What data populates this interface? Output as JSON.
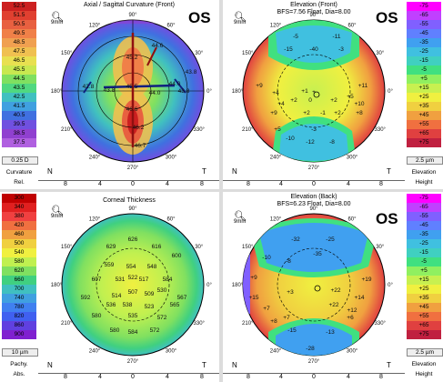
{
  "eye": "OS",
  "panels": {
    "curvature": {
      "title": "Axial / Sagittal Curvature (Front)",
      "scale": [
        "52.5",
        "51.5",
        "50.5",
        "49.5",
        "48.5",
        "47.5",
        "46.5",
        "45.5",
        "44.5",
        "43.5",
        "42.5",
        "41.5",
        "40.5",
        "39.5",
        "38.5",
        "37.5"
      ],
      "scale_colors": [
        "#cc2020",
        "#e04030",
        "#e86040",
        "#f08048",
        "#f0a050",
        "#f0c050",
        "#e8e050",
        "#c8e850",
        "#80e060",
        "#50d880",
        "#40c0c0",
        "#40a0e0",
        "#4070e0",
        "#7050e0",
        "#9040d0",
        "#b060e0"
      ],
      "step": "0.25 D",
      "cap1": "Curvature",
      "cap2": "Rel.",
      "zoom": "9mm",
      "values": [
        "44.6",
        "45.2",
        "43.8",
        "44.0",
        "43.8",
        "42.8",
        "43.8",
        "45.5",
        "44.0",
        "46.6",
        "46.2",
        "46.7"
      ],
      "angles": [
        "90°",
        "60°",
        "30°",
        "0°",
        "330°",
        "300°",
        "270°",
        "240°",
        "210°",
        "180°",
        "150°",
        "120°"
      ],
      "n": "N",
      "t": "T",
      "ruler": [
        "8",
        "4",
        "0",
        "4",
        "8"
      ]
    },
    "elev_front": {
      "title": "Elevation (Front)",
      "subtitle": "BFS=7.56 Float, Dia=8.00",
      "scale": [
        "-75",
        "-65",
        "-55",
        "-45",
        "-35",
        "-25",
        "-15",
        "-5",
        "+5",
        "+15",
        "+25",
        "+35",
        "+45",
        "+55",
        "+65",
        "+75"
      ],
      "scale_colors": [
        "#ff00ff",
        "#c040ff",
        "#8060ff",
        "#6080ff",
        "#40a0f0",
        "#40c0e0",
        "#40d0c0",
        "#40e080",
        "#90f060",
        "#c8f050",
        "#f0f040",
        "#f0d040",
        "#f0a040",
        "#f07040",
        "#e04040",
        "#c02040"
      ],
      "step": "2.5 µm",
      "cap1": "Elevation",
      "cap2": "Height",
      "zoom": "9mm",
      "values": [
        "-5",
        "-11",
        "-15",
        "-40",
        "-3",
        "+9",
        "+4",
        "+11",
        "+1",
        "+5",
        "+2",
        "0",
        "+2",
        "+4",
        "+10",
        "+9",
        "+2",
        "-1",
        "+2",
        "+8",
        "+5",
        "-3",
        "-10",
        "-12",
        "-8"
      ],
      "angles": [
        "90°",
        "60°",
        "30°",
        "0°",
        "330°",
        "300°",
        "270°",
        "240°",
        "210°",
        "180°",
        "150°",
        "120°"
      ],
      "n": "N",
      "t": "T",
      "ruler": [
        "8",
        "4",
        "0",
        "4",
        "8"
      ]
    },
    "thickness": {
      "title": "Corneal Thickness",
      "scale": [
        "300",
        "340",
        "380",
        "420",
        "460",
        "500",
        "540",
        "580",
        "620",
        "660",
        "700",
        "740",
        "780",
        "820",
        "860",
        "900"
      ],
      "scale_colors": [
        "#c00000",
        "#e02020",
        "#f04040",
        "#f07040",
        "#f0a040",
        "#f0d040",
        "#f0f040",
        "#c0f050",
        "#80e060",
        "#40d080",
        "#40c0c0",
        "#40a0e0",
        "#4080f0",
        "#4060f0",
        "#6040e0",
        "#8020d0"
      ],
      "step": "10 µm",
      "cap1": "Pachy.",
      "cap2": "Abs.",
      "zoom": "9mm",
      "values": [
        "626",
        "629",
        "616",
        "600",
        "559",
        "554",
        "548",
        "607",
        "531",
        "522",
        "517",
        "584",
        "592",
        "514",
        "507",
        "509",
        "530",
        "567",
        "536",
        "538",
        "523",
        "565",
        "580",
        "535",
        "572",
        "580",
        "584",
        "572"
      ],
      "angles": [
        "90°",
        "60°",
        "30°",
        "0°",
        "330°",
        "300°",
        "270°",
        "240°",
        "210°",
        "180°",
        "150°",
        "120°"
      ],
      "n": "N",
      "t": "T",
      "ruler": [
        "8",
        "4",
        "0",
        "4",
        "8"
      ]
    },
    "elev_back": {
      "title": "Elevation (Back)",
      "subtitle": "BFS=6.23 Float, Dia=8.00",
      "scale": [
        "-75",
        "-65",
        "-55",
        "-45",
        "-35",
        "-25",
        "-15",
        "-5",
        "+5",
        "+15",
        "+25",
        "+35",
        "+45",
        "+55",
        "+65",
        "+75"
      ],
      "scale_colors": [
        "#ff00ff",
        "#c040ff",
        "#8060ff",
        "#6080ff",
        "#40a0f0",
        "#40c0e0",
        "#40d0c0",
        "#40e080",
        "#90f060",
        "#c8f050",
        "#f0f040",
        "#f0d040",
        "#f0a040",
        "#f07040",
        "#e04040",
        "#c02040"
      ],
      "step": "2.5 µm",
      "cap1": "Elevation",
      "cap2": "Height",
      "zoom": "9mm",
      "values": [
        "-32",
        "-25",
        "-35",
        "-10",
        "-8",
        "+9",
        "+19",
        "+15",
        "+7",
        "+14",
        "+12",
        "+3",
        "+22",
        "+22",
        "+7",
        "+6",
        "+8",
        "-15",
        "-13",
        "-28"
      ],
      "angles": [
        "90°",
        "60°",
        "30°",
        "0°",
        "330°",
        "300°",
        "270°",
        "240°",
        "210°",
        "180°",
        "150°",
        "120°"
      ],
      "n": "N",
      "t": "T",
      "ruler": [
        "8",
        "4",
        "0",
        "4",
        "8"
      ]
    }
  }
}
